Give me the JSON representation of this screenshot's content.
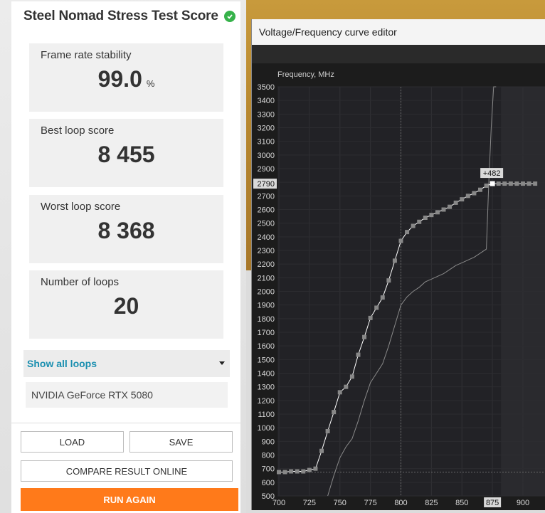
{
  "score_panel": {
    "title": "Steel Nomad Stress Test Score",
    "cards": [
      {
        "label": "Frame rate stability",
        "value": "99.0",
        "unit": "%"
      },
      {
        "label": "Best loop score",
        "value": "8 455",
        "unit": ""
      },
      {
        "label": "Worst loop score",
        "value": "8 368",
        "unit": ""
      },
      {
        "label": "Number of loops",
        "value": "20",
        "unit": ""
      }
    ],
    "show_loops_label": "Show all loops",
    "gpu_name": "NVIDIA GeForce RTX 5080",
    "buttons": {
      "load": "LOAD",
      "save": "SAVE",
      "compare": "COMPARE RESULT ONLINE",
      "run_again": "RUN AGAIN"
    },
    "colors": {
      "accent_orange": "#ff7a1a",
      "link_blue": "#1a8fb0",
      "check_green": "#36b24a"
    }
  },
  "vf_editor": {
    "title": "Voltage/Frequency curve editor",
    "y_axis_label": "Frequency, MHz",
    "highlighted_y_label": "2790",
    "highlighted_x_label": "875",
    "offset_label": "+482",
    "colors": {
      "background": "#1c1c1c",
      "curve": "#ffffff",
      "default_curve": "#8a8a8a",
      "point": "#888888"
    }
  },
  "chart_data": {
    "type": "line",
    "xlabel": "",
    "ylabel": "Frequency, MHz",
    "xlim": [
      700,
      900
    ],
    "ylim": [
      500,
      3500
    ],
    "x_ticks": [
      700,
      725,
      750,
      775,
      800,
      825,
      850,
      875,
      900
    ],
    "y_ticks": [
      500,
      600,
      700,
      800,
      900,
      1000,
      1100,
      1200,
      1300,
      1400,
      1500,
      1600,
      1700,
      1800,
      1900,
      2000,
      2100,
      2200,
      2300,
      2400,
      2500,
      2600,
      2700,
      2800,
      2900,
      3000,
      3100,
      3200,
      3300,
      3400,
      3500
    ],
    "series": [
      {
        "name": "",
        "x": [
          700,
          705,
          710,
          715,
          720,
          725,
          730,
          735,
          740,
          745,
          750,
          755,
          760,
          765,
          770,
          775,
          780,
          785,
          790,
          795,
          800,
          805,
          810,
          815,
          820,
          825,
          830,
          835,
          840,
          845,
          850,
          855,
          860,
          865,
          870,
          875,
          880,
          885,
          890,
          895,
          900,
          905,
          910
        ],
        "y": [
          675,
          675,
          680,
          680,
          680,
          690,
          700,
          830,
          975,
          1115,
          1260,
          1300,
          1375,
          1535,
          1665,
          1805,
          1880,
          1955,
          2080,
          2225,
          2370,
          2435,
          2480,
          2510,
          2540,
          2560,
          2580,
          2600,
          2620,
          2650,
          2675,
          2700,
          2720,
          2745,
          2775,
          2790,
          2790,
          2790,
          2790,
          2790,
          2790,
          2790,
          2790
        ]
      },
      {
        "name": "",
        "x": [
          740,
          745,
          750,
          755,
          760,
          765,
          770,
          775,
          780,
          785,
          790,
          795,
          800,
          805,
          810,
          815,
          820,
          825,
          830,
          835,
          840,
          845,
          850,
          855,
          860,
          865,
          870,
          872,
          874,
          876,
          878
        ],
        "y": [
          500,
          650,
          780,
          860,
          920,
          1050,
          1200,
          1330,
          1400,
          1470,
          1600,
          1750,
          1900,
          1960,
          2000,
          2030,
          2070,
          2090,
          2110,
          2130,
          2160,
          2190,
          2210,
          2230,
          2250,
          2280,
          2310,
          2800,
          3200,
          3500,
          3500
        ]
      }
    ],
    "highlight": {
      "x": 875,
      "y": 2790,
      "offset": "+482"
    },
    "grid": true
  }
}
